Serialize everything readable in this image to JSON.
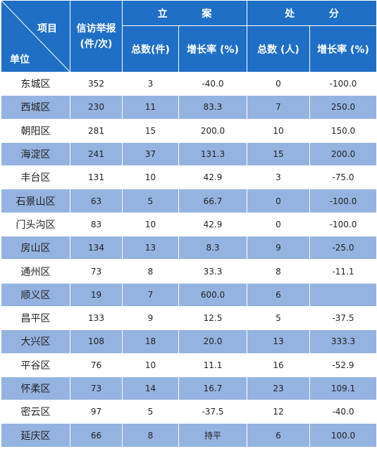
{
  "header": {
    "corner_top": "项目",
    "corner_bottom": "单位",
    "report_label": "信访举报(件/次)",
    "case_group": "立  案",
    "punish_group": "处  分",
    "case_total": "总数(件)",
    "case_growth": "增长率 (%)",
    "punish_total": "总数 (人)",
    "punish_growth": "增长率 (%)"
  },
  "colors": {
    "header_bg": "#1f6fc6",
    "stripe_bg": "#95b3e0",
    "white": "#ffffff"
  },
  "rows": [
    {
      "unit": "东城区",
      "reports": "352",
      "cases": "3",
      "case_growth": "-40.0",
      "punished": "0",
      "punish_growth": "-100.0"
    },
    {
      "unit": "西城区",
      "reports": "230",
      "cases": "11",
      "case_growth": "83.3",
      "punished": "7",
      "punish_growth": "250.0"
    },
    {
      "unit": "朝阳区",
      "reports": "281",
      "cases": "15",
      "case_growth": "200.0",
      "punished": "10",
      "punish_growth": "150.0"
    },
    {
      "unit": "海淀区",
      "reports": "241",
      "cases": "37",
      "case_growth": "131.3",
      "punished": "15",
      "punish_growth": "200.0"
    },
    {
      "unit": "丰台区",
      "reports": "131",
      "cases": "10",
      "case_growth": "42.9",
      "punished": "3",
      "punish_growth": "-75.0"
    },
    {
      "unit": "石景山区",
      "reports": "63",
      "cases": "5",
      "case_growth": "66.7",
      "punished": "0",
      "punish_growth": "-100.0"
    },
    {
      "unit": "门头沟区",
      "reports": "83",
      "cases": "10",
      "case_growth": "42.9",
      "punished": "0",
      "punish_growth": "-100.0"
    },
    {
      "unit": "房山区",
      "reports": "134",
      "cases": "13",
      "case_growth": "8.3",
      "punished": "9",
      "punish_growth": "-25.0"
    },
    {
      "unit": "通州区",
      "reports": "73",
      "cases": "8",
      "case_growth": "33.3",
      "punished": "8",
      "punish_growth": "-11.1"
    },
    {
      "unit": "顺义区",
      "reports": "19",
      "cases": "7",
      "case_growth": "600.0",
      "punished": "6",
      "punish_growth": ""
    },
    {
      "unit": "昌平区",
      "reports": "133",
      "cases": "9",
      "case_growth": "12.5",
      "punished": "5",
      "punish_growth": "-37.5"
    },
    {
      "unit": "大兴区",
      "reports": "108",
      "cases": "18",
      "case_growth": "20.0",
      "punished": "13",
      "punish_growth": "333.3"
    },
    {
      "unit": "平谷区",
      "reports": "76",
      "cases": "10",
      "case_growth": "11.1",
      "punished": "16",
      "punish_growth": "-52.9"
    },
    {
      "unit": "怀柔区",
      "reports": "73",
      "cases": "14",
      "case_growth": "16.7",
      "punished": "23",
      "punish_growth": "109.1"
    },
    {
      "unit": "密云区",
      "reports": "97",
      "cases": "5",
      "case_growth": "-37.5",
      "punished": "12",
      "punish_growth": "-40.0"
    },
    {
      "unit": "延庆区",
      "reports": "66",
      "cases": "8",
      "case_growth": "持平",
      "punished": "6",
      "punish_growth": "100.0"
    }
  ]
}
